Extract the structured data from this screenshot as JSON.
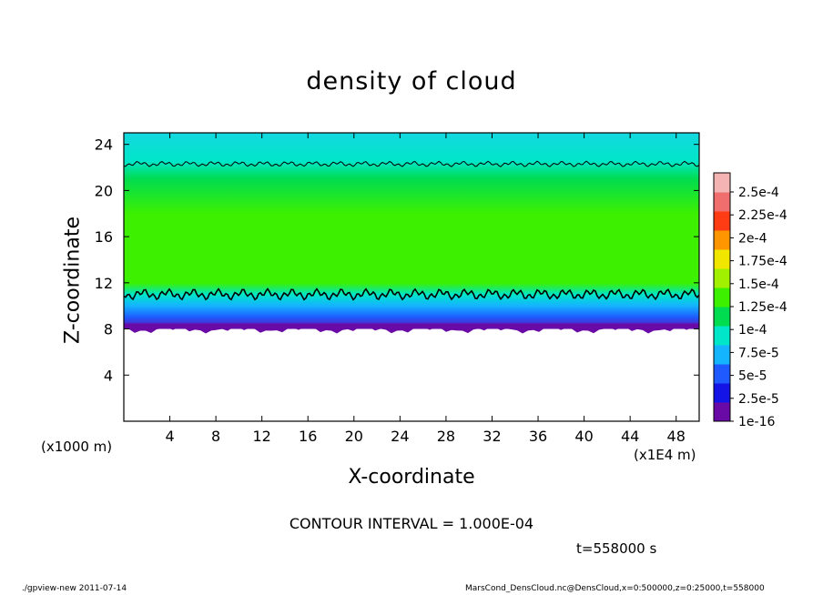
{
  "chart_data": {
    "type": "heatmap",
    "title": "density of cloud",
    "xlabel": "X-coordinate",
    "ylabel": "Z-coordinate",
    "x_unit": "(x1E4 m)",
    "y_unit": "(x1000 m)",
    "xlim": [
      0,
      50
    ],
    "ylim": [
      0,
      25
    ],
    "x_ticks": [
      4,
      8,
      12,
      16,
      20,
      24,
      28,
      32,
      36,
      40,
      44,
      48
    ],
    "y_ticks": [
      4,
      8,
      12,
      16,
      20,
      24
    ],
    "colorbar": {
      "levels": [
        "1e-16",
        "2.5e-5",
        "5e-5",
        "7.5e-5",
        "1e-4",
        "1.25e-4",
        "1.5e-4",
        "1.75e-4",
        "2e-4",
        "2.25e-4",
        "2.5e-4"
      ],
      "colors": [
        "#6a0aa6",
        "#1414e6",
        "#1e5aff",
        "#14b4ff",
        "#00e6c8",
        "#00dc50",
        "#3cf000",
        "#a0f000",
        "#f0e600",
        "#ff9600",
        "#ff3c14",
        "#f06e6e",
        "#f5b4b4"
      ]
    },
    "profile": [
      {
        "z": 8.0,
        "value": 2.5e-05,
        "color": "#6a0aa6"
      },
      {
        "z": 9.0,
        "value": 3.5e-05,
        "color": "#1e5aff"
      },
      {
        "z": 10.0,
        "value": 6.5e-05,
        "color": "#14b4ff"
      },
      {
        "z": 11.0,
        "value": 9e-05,
        "color": "#00e6c8"
      },
      {
        "z": 12.0,
        "value": 0.00014,
        "color": "#3cf000"
      },
      {
        "z": 18.0,
        "value": 0.000145,
        "color": "#3cf000"
      },
      {
        "z": 21.0,
        "value": 0.000115,
        "color": "#00dc50"
      },
      {
        "z": 22.5,
        "value": 9e-05,
        "color": "#00e6c8"
      },
      {
        "z": 25.0,
        "value": 7.5e-05,
        "color": "#14d8e0"
      }
    ],
    "contour_levels_z": [
      11.0,
      22.3
    ],
    "contour_interval_label": "CONTOUR INTERVAL = 1.000E-04",
    "time_label": "t=558000 s"
  },
  "footer": {
    "left": "./gpview-new   2011-07-14",
    "right": "MarsCond_DensCloud.nc@DensCloud,x=0:500000,z=0:25000,t=558000"
  }
}
